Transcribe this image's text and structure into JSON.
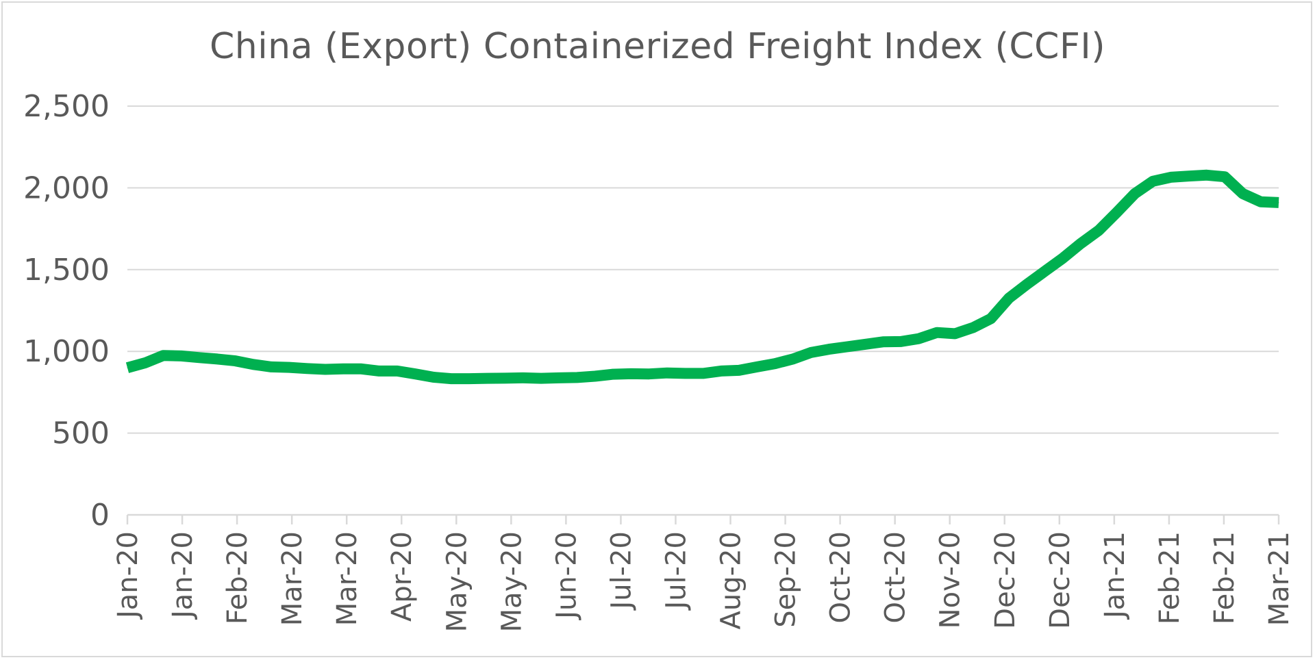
{
  "chart_data": {
    "type": "line",
    "title": "China (Export) Containerized Freight Index (CCFI)",
    "xlabel": "",
    "ylabel": "",
    "ylim": [
      0,
      2500
    ],
    "y_ticks": [
      0,
      500,
      1000,
      1500,
      2000,
      2500
    ],
    "y_tick_labels": [
      "0",
      "500",
      "1,000",
      "1,500",
      "2,000",
      "2,500"
    ],
    "x_tick_labels": [
      "Jan-20",
      "Jan-20",
      "Feb-20",
      "Mar-20",
      "Mar-20",
      "Apr-20",
      "May-20",
      "May-20",
      "Jun-20",
      "Jul-20",
      "Jul-20",
      "Aug-20",
      "Sep-20",
      "Oct-20",
      "Oct-20",
      "Nov-20",
      "Dec-20",
      "Dec-20",
      "Jan-21",
      "Feb-21",
      "Feb-21",
      "Mar-21"
    ],
    "grid": true,
    "legend": "none",
    "line_color": "#00b050",
    "grid_color": "#d9d9d9",
    "series": [
      {
        "values": [
          900,
          930,
          975,
          972,
          962,
          953,
          942,
          920,
          905,
          902,
          895,
          890,
          893,
          893,
          880,
          880,
          862,
          842,
          833,
          833,
          835,
          836,
          838,
          835,
          838,
          840,
          848,
          860,
          863,
          862,
          868,
          865,
          865,
          880,
          884,
          905,
          925,
          953,
          993,
          1013,
          1028,
          1043,
          1058,
          1060,
          1078,
          1115,
          1108,
          1145,
          1200,
          1325,
          1410,
          1490,
          1570,
          1660,
          1740,
          1850,
          1965,
          2040,
          2065,
          2072,
          2078,
          2068,
          1965,
          1915,
          1910
        ]
      }
    ]
  }
}
